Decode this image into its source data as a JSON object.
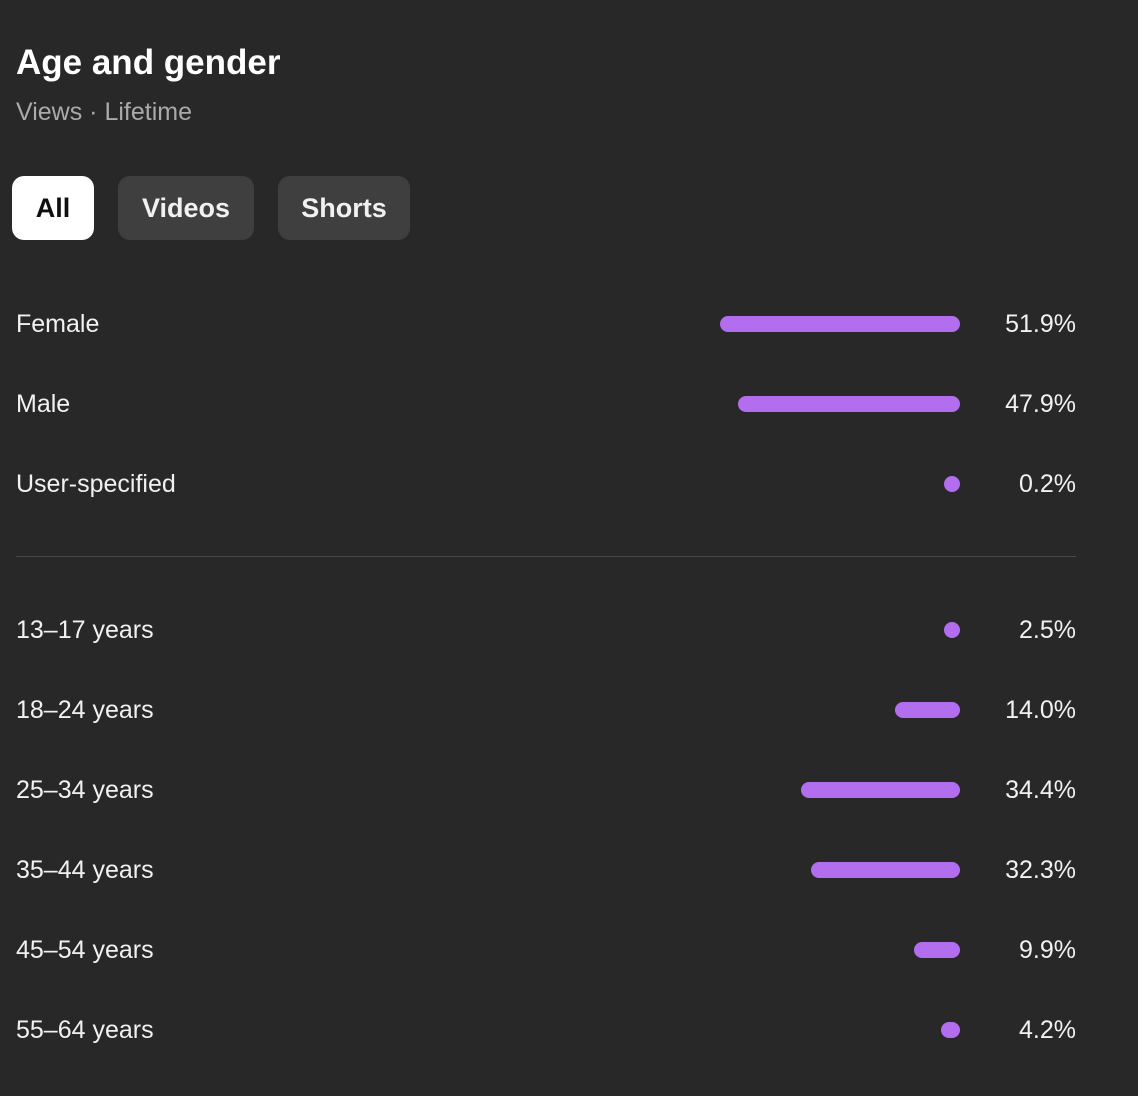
{
  "header": {
    "title": "Age and gender",
    "subtitle": "Views · Lifetime"
  },
  "tabs": [
    {
      "label": "All",
      "active": true
    },
    {
      "label": "Videos",
      "active": false
    },
    {
      "label": "Shorts",
      "active": false
    }
  ],
  "colors": {
    "bar": "#b36ef0",
    "background": "#282828",
    "active_chip": "#ffffff",
    "chip": "#3f3f3f"
  },
  "gender": [
    {
      "label": "Female",
      "value": "51.9%",
      "percent": 51.9
    },
    {
      "label": "Male",
      "value": "47.9%",
      "percent": 47.9
    },
    {
      "label": "User-specified",
      "value": "0.2%",
      "percent": 0.2
    }
  ],
  "age": [
    {
      "label": "13–17 years",
      "value": "2.5%",
      "percent": 2.5
    },
    {
      "label": "18–24 years",
      "value": "14.0%",
      "percent": 14.0
    },
    {
      "label": "25–34 years",
      "value": "34.4%",
      "percent": 34.4
    },
    {
      "label": "35–44 years",
      "value": "32.3%",
      "percent": 32.3
    },
    {
      "label": "45–54 years",
      "value": "9.9%",
      "percent": 9.9
    },
    {
      "label": "55–64 years",
      "value": "4.2%",
      "percent": 4.2
    }
  ]
}
